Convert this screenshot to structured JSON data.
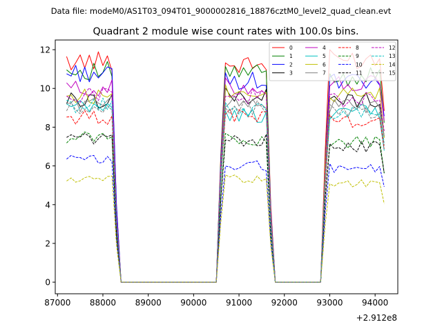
{
  "chart_data": {
    "type": "line",
    "suptitle": "Data file: modeM0/AS1T03_094T01_9000002816_18876cztM0_level2_quad_clean.evt",
    "title": "Quadrant 2 module wise count rates with 100.0s bins.",
    "xlabel": "",
    "ylabel": "",
    "x_offset_label": "+2.912e8",
    "xlim": [
      86950,
      94500
    ],
    "ylim": [
      -0.6,
      12.5
    ],
    "x_ticks": [
      87000,
      88000,
      89000,
      90000,
      91000,
      92000,
      93000,
      94000
    ],
    "y_ticks": [
      0,
      2,
      4,
      6,
      8,
      10,
      12
    ],
    "grid": false,
    "legend_position": "top-right",
    "legend_columns": 4,
    "segments": [
      {
        "x_start": 87200,
        "x_end": 88300,
        "step": 100
      },
      {
        "x_start": 90600,
        "x_end": 91700,
        "step": 100
      },
      {
        "x_start": 92900,
        "x_end": 94200,
        "step": 100
      }
    ],
    "series": [
      {
        "name": "0",
        "color": "#ff0000",
        "dash": "solid",
        "levels": [
          11.4,
          11.2,
          11.5
        ]
      },
      {
        "name": "1",
        "color": "#008000",
        "dash": "solid",
        "levels": [
          10.9,
          10.8,
          10.6
        ]
      },
      {
        "name": "2",
        "color": "#0000ff",
        "dash": "solid",
        "levels": [
          10.8,
          10.4,
          10.3
        ]
      },
      {
        "name": "3",
        "color": "#000000",
        "dash": "solid",
        "levels": [
          9.4,
          9.6,
          9.4
        ]
      },
      {
        "name": "4",
        "color": "#bf00bf",
        "dash": "solid",
        "levels": [
          10.0,
          10.1,
          10.2
        ]
      },
      {
        "name": "5",
        "color": "#00bfbf",
        "dash": "solid",
        "levels": [
          9.0,
          8.6,
          8.8
        ]
      },
      {
        "name": "6",
        "color": "#bfbf00",
        "dash": "solid",
        "levels": [
          9.6,
          9.9,
          9.6
        ]
      },
      {
        "name": "7",
        "color": "#808080",
        "dash": "solid",
        "levels": [
          9.2,
          9.3,
          9.1
        ]
      },
      {
        "name": "8",
        "color": "#ff0000",
        "dash": "dashed",
        "levels": [
          8.5,
          8.6,
          8.3
        ]
      },
      {
        "name": "9",
        "color": "#008000",
        "dash": "dashed",
        "levels": [
          7.5,
          7.4,
          7.2
        ]
      },
      {
        "name": "10",
        "color": "#0000ff",
        "dash": "dashed",
        "levels": [
          6.3,
          6.0,
          5.9
        ]
      },
      {
        "name": "11",
        "color": "#000000",
        "dash": "dashed",
        "levels": [
          7.4,
          7.3,
          7.0
        ]
      },
      {
        "name": "12",
        "color": "#bf00bf",
        "dash": "dashed",
        "levels": [
          9.7,
          9.6,
          9.4
        ]
      },
      {
        "name": "13",
        "color": "#00bfbf",
        "dash": "dashed",
        "levels": [
          9.1,
          8.9,
          8.8
        ]
      },
      {
        "name": "14",
        "color": "#bfbf00",
        "dash": "dashed",
        "levels": [
          5.3,
          5.3,
          5.1
        ]
      },
      {
        "name": "15",
        "color": "#808080",
        "dash": "dashed",
        "levels": [
          8.9,
          9.0,
          8.8
        ]
      }
    ],
    "x_axis": [
      87200,
      87300,
      87400,
      87500,
      87600,
      87700,
      87800,
      87900,
      88000,
      88100,
      88200,
      88300,
      88400,
      88500,
      90500,
      90600,
      90700,
      90800,
      90900,
      91000,
      91100,
      91200,
      91300,
      91400,
      91500,
      91600,
      91700,
      91800,
      92800,
      92900,
      93000,
      93100,
      93200,
      93300,
      93400,
      93500,
      93600,
      93700,
      93800,
      93900,
      94000,
      94100,
      94200
    ],
    "note": "Each series holds 43 y-values aligned to x_axis; zero between segments."
  }
}
